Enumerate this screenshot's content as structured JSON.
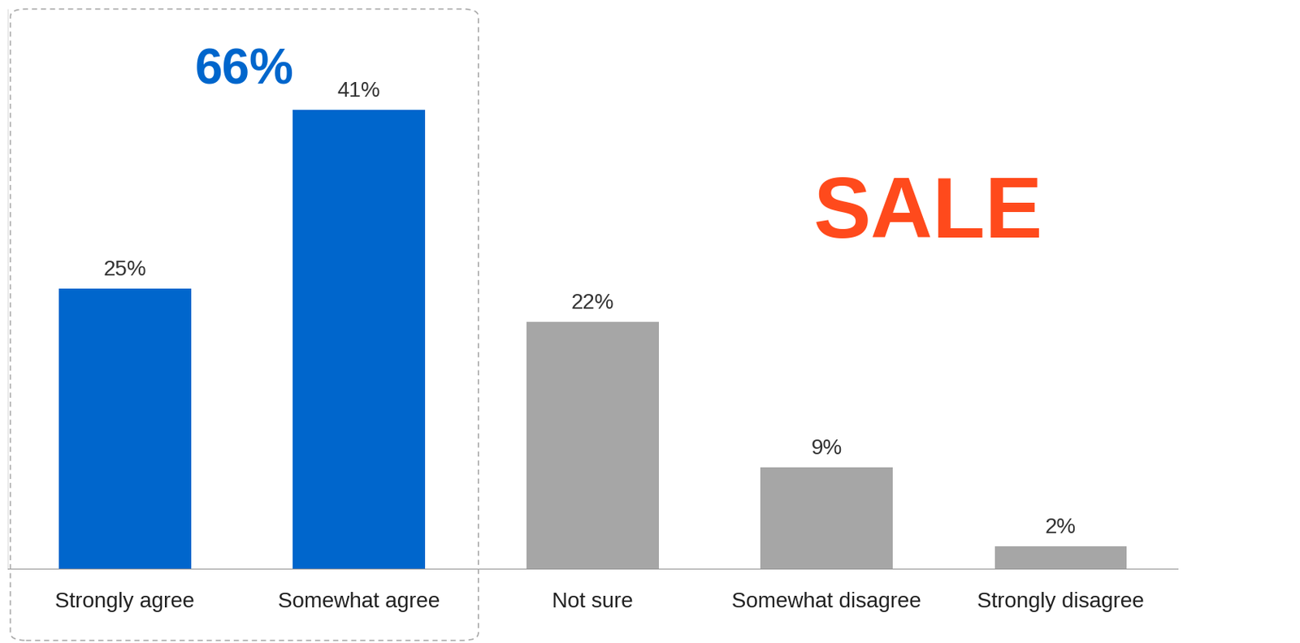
{
  "chart_data": {
    "type": "bar",
    "categories": [
      "Strongly agree",
      "Somewhat agree",
      "Not sure",
      "Somewhat disagree",
      "Strongly disagree"
    ],
    "values": [
      25,
      41,
      22,
      9,
      2
    ],
    "value_labels": [
      "25%",
      "41%",
      "22%",
      "9%",
      "2%"
    ],
    "colors": [
      "#0066cc",
      "#0066cc",
      "#a6a6a6",
      "#a6a6a6",
      "#a6a6a6"
    ],
    "data_labels": true,
    "ylim": [
      0,
      50
    ],
    "yticks": [],
    "tick_labels": "x",
    "grid": false,
    "annotations": [
      "66%",
      "SALE"
    ]
  }
}
